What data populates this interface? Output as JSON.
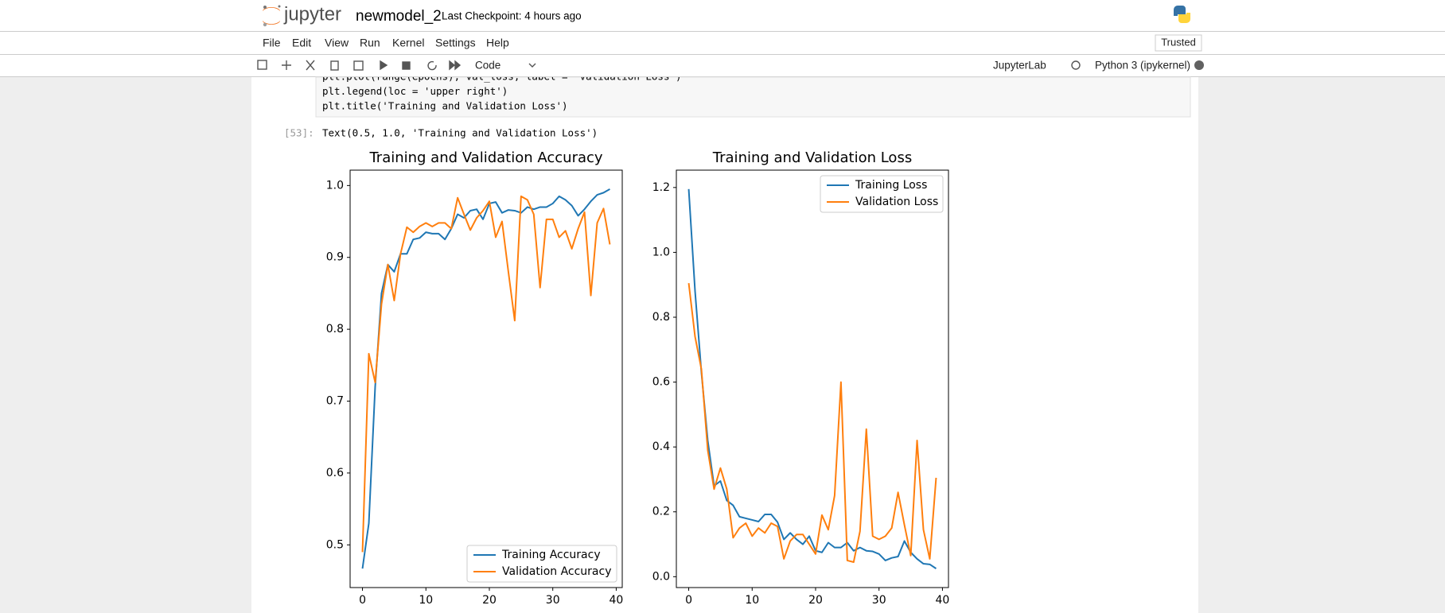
{
  "header": {
    "logo": "jupyter",
    "notebook_name": "newmodel_2",
    "checkpoint": "Last Checkpoint: 4 hours ago",
    "trusted": "Trusted"
  },
  "menu": [
    "File",
    "Edit",
    "View",
    "Run",
    "Kernel",
    "Settings",
    "Help"
  ],
  "toolbar": {
    "cell_type": "Code",
    "jupyterlab": "JupyterLab",
    "kernel": "Python 3 (ipykernel)"
  },
  "code_lines": [
    "plt.plot(range(epochs), val_loss, label = 'Validation Loss')",
    "plt.legend(loc = 'upper right')",
    "plt.title('Training and Validation Loss')"
  ],
  "output": {
    "prompt": "[53]:",
    "text": "Text(0.5, 1.0, 'Training and Validation Loss')"
  },
  "chart_data": [
    {
      "type": "line",
      "title": "Training and Validation Accuracy",
      "x": [
        0,
        1,
        2,
        3,
        4,
        5,
        6,
        7,
        8,
        9,
        10,
        11,
        12,
        13,
        14,
        15,
        16,
        17,
        18,
        19,
        20,
        21,
        22,
        23,
        24,
        25,
        26,
        27,
        28,
        29,
        30,
        31,
        32,
        33,
        34,
        35,
        36,
        37,
        38,
        39
      ],
      "series": [
        {
          "name": "Training Accuracy",
          "color": "#1f77b4",
          "values": [
            0.467,
            0.53,
            0.72,
            0.85,
            0.89,
            0.88,
            0.905,
            0.905,
            0.925,
            0.927,
            0.935,
            0.933,
            0.933,
            0.925,
            0.94,
            0.96,
            0.955,
            0.965,
            0.967,
            0.953,
            0.975,
            0.977,
            0.962,
            0.966,
            0.965,
            0.962,
            0.97,
            0.967,
            0.97,
            0.97,
            0.975,
            0.985,
            0.98,
            0.972,
            0.958,
            0.967,
            0.978,
            0.987,
            0.99,
            0.995
          ]
        },
        {
          "name": "Validation Accuracy",
          "color": "#ff7f0e",
          "values": [
            0.49,
            0.766,
            0.726,
            0.835,
            0.89,
            0.84,
            0.905,
            0.942,
            0.935,
            0.943,
            0.948,
            0.943,
            0.948,
            0.948,
            0.94,
            0.983,
            0.96,
            0.938,
            0.955,
            0.965,
            0.978,
            0.928,
            0.95,
            0.88,
            0.812,
            0.985,
            0.98,
            0.96,
            0.858,
            0.953,
            0.953,
            0.928,
            0.937,
            0.912,
            0.94,
            0.963,
            0.847,
            0.948,
            0.968,
            0.918
          ]
        }
      ],
      "xlim": [
        -1.95,
        40.95
      ],
      "xticks": [
        0,
        10,
        20,
        30,
        40
      ],
      "ylim": [
        0.4406,
        1.0214
      ],
      "yticks": [
        0.5,
        0.6,
        0.7,
        0.8,
        0.9,
        {
          "value": 1,
          "label": "1.0"
        }
      ],
      "legend": "lower right"
    },
    {
      "type": "line",
      "title": "Training and Validation Loss",
      "x": [
        0,
        1,
        2,
        3,
        4,
        5,
        6,
        7,
        8,
        9,
        10,
        11,
        12,
        13,
        14,
        15,
        16,
        17,
        18,
        19,
        20,
        21,
        22,
        23,
        24,
        25,
        26,
        27,
        28,
        29,
        30,
        31,
        32,
        33,
        34,
        35,
        36,
        37,
        38,
        39
      ],
      "series": [
        {
          "name": "Training Loss",
          "color": "#1f77b4",
          "values": [
            1.195,
            0.88,
            0.63,
            0.42,
            0.28,
            0.295,
            0.235,
            0.22,
            0.185,
            0.18,
            0.175,
            0.17,
            0.192,
            0.192,
            0.168,
            0.115,
            0.135,
            0.115,
            0.1,
            0.125,
            0.08,
            0.075,
            0.105,
            0.09,
            0.09,
            0.105,
            0.08,
            0.09,
            0.08,
            0.078,
            0.07,
            0.05,
            0.058,
            0.062,
            0.11,
            0.075,
            0.055,
            0.04,
            0.038,
            0.025
          ]
        },
        {
          "name": "Validation Loss",
          "color": "#ff7f0e",
          "values": [
            0.905,
            0.74,
            0.64,
            0.39,
            0.27,
            0.335,
            0.27,
            0.12,
            0.15,
            0.165,
            0.125,
            0.15,
            0.135,
            0.165,
            0.155,
            0.055,
            0.11,
            0.13,
            0.13,
            0.1,
            0.07,
            0.19,
            0.145,
            0.25,
            0.6,
            0.05,
            0.045,
            0.14,
            0.455,
            0.125,
            0.115,
            0.125,
            0.15,
            0.26,
            0.16,
            0.065,
            0.42,
            0.145,
            0.055,
            0.305
          ]
        }
      ],
      "xlim": [
        -1.95,
        40.95
      ],
      "xticks": [
        0,
        10,
        20,
        30,
        40
      ],
      "ylim": [
        -0.0335,
        1.2535
      ],
      "yticks": [
        {
          "value": 0,
          "label": "0.0"
        },
        0.2,
        0.4,
        0.6,
        0.8,
        {
          "value": 1,
          "label": "1.0"
        },
        1.2
      ],
      "legend": "upper right"
    }
  ]
}
